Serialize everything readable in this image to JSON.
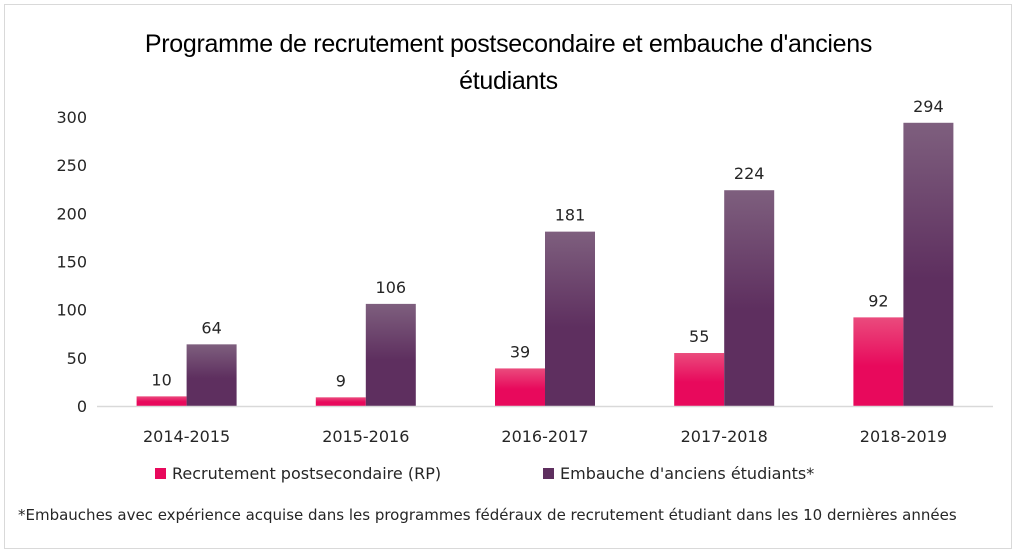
{
  "chart_data": {
    "type": "bar",
    "title": "Programme de recrutement postsecondaire et embauche d'anciens étudiants",
    "title_lines": [
      "Programme de recrutement postsecondaire et embauche d'anciens",
      "étudiants"
    ],
    "xlabel": "",
    "ylabel": "",
    "ylim": [
      0,
      300
    ],
    "yticks": [
      0,
      50,
      100,
      150,
      200,
      250,
      300
    ],
    "grid": false,
    "legend_position": "bottom",
    "categories": [
      "2014-2015",
      "2015-2016",
      "2016-2017",
      "2017-2018",
      "2018-2019"
    ],
    "series": [
      {
        "name": "Recrutement postsecondaire (RP)",
        "color": "#e8095c",
        "color_top": "#ea4b7d",
        "values": [
          10,
          9,
          39,
          55,
          92
        ]
      },
      {
        "name": "Embauche d'anciens étudiants*",
        "color": "#5e2f5f",
        "color_top": "#7e5f7e",
        "values": [
          64,
          106,
          181,
          224,
          294
        ]
      }
    ],
    "data_labels": true,
    "footnote": "*Embauches avec expérience acquise dans les programmes fédéraux de recrutement étudiant dans les 10 dernières années"
  }
}
